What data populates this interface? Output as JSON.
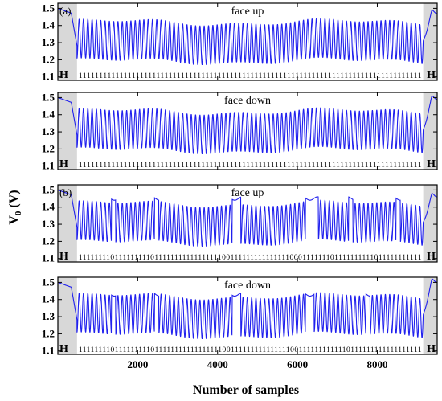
{
  "figure": {
    "xlabel": "Number of samples",
    "ylabel": "V",
    "ylabel_sub": "0",
    "ylabel_unit": " (V)"
  },
  "chart_data": [
    {
      "type": "line",
      "panel_label": "(a)",
      "title": "face up",
      "xlim": [
        0,
        9500
      ],
      "ylim": [
        1.08,
        1.53
      ],
      "yticks": [
        1.1,
        1.2,
        1.3,
        1.4,
        1.5
      ],
      "yticks_labels": [
        "1.1",
        "1.2",
        "1.3",
        "1.4",
        "1.5"
      ],
      "xticks": [
        2000,
        4000,
        6000,
        8000
      ],
      "xticks_labels": [
        "2000",
        "4000",
        "6000",
        "8000"
      ],
      "header_regions": [
        [
          0,
          480
        ],
        [
          9150,
          9500
        ]
      ],
      "header_mark": "H",
      "bit_sequence": "111111111111111111111111111111111111111111111111111111111111111111111111111111111111",
      "line_color": "#2020ee",
      "series": [
        {
          "signal_period_samples": 108,
          "high": 1.42,
          "low": 1.19,
          "start_level": 1.5,
          "end_level": 1.48
        }
      ]
    },
    {
      "type": "line",
      "panel_label": "",
      "title": "face down",
      "xlim": [
        0,
        9500
      ],
      "ylim": [
        1.08,
        1.53
      ],
      "yticks": [
        1.1,
        1.2,
        1.3,
        1.4,
        1.5
      ],
      "yticks_labels": [
        "1.1",
        "1.2",
        "1.3",
        "1.4",
        "1.5"
      ],
      "xticks": [
        2000,
        4000,
        6000,
        8000
      ],
      "xticks_labels": [
        "2000",
        "4000",
        "6000",
        "8000"
      ],
      "header_regions": [
        [
          0,
          480
        ],
        [
          9150,
          9500
        ]
      ],
      "header_mark": "H",
      "bit_sequence": "111111111111111111111111111111111111111111111111111111111111111111111111111111111111",
      "line_color": "#2020ee",
      "series": [
        {
          "signal_period_samples": 108,
          "high": 1.42,
          "low": 1.19,
          "start_level": 1.5,
          "end_level": 1.5
        }
      ]
    },
    {
      "type": "line",
      "panel_label": "(b)",
      "title": "face up",
      "xlim": [
        0,
        9500
      ],
      "ylim": [
        1.08,
        1.53
      ],
      "yticks": [
        1.1,
        1.2,
        1.3,
        1.4,
        1.5
      ],
      "yticks_labels": [
        "1.1",
        "1.2",
        "1.3",
        "1.4",
        "1.5"
      ],
      "xticks": [
        2000,
        4000,
        6000,
        8000
      ],
      "xticks_labels": [
        "2000",
        "4000",
        "6000",
        "8000"
      ],
      "header_regions": [
        [
          0,
          480
        ],
        [
          9150,
          9500
        ]
      ],
      "header_mark": "H",
      "bit_sequence": "11111111011111111101111111111111111100111111111111111000111111101111111111011111111111",
      "line_color": "#2020ee",
      "series": [
        {
          "signal_period_samples": 108,
          "high": 1.42,
          "low": 1.19,
          "zero_level": 1.45,
          "start_level": 1.5,
          "end_level": 1.47
        }
      ]
    },
    {
      "type": "line",
      "panel_label": "",
      "title": "face down",
      "xlim": [
        0,
        9500
      ],
      "ylim": [
        1.08,
        1.53
      ],
      "yticks": [
        1.1,
        1.2,
        1.3,
        1.4,
        1.5
      ],
      "yticks_labels": [
        "1.1",
        "1.2",
        "1.3",
        "1.4",
        "1.5"
      ],
      "xticks": [
        2000,
        4000,
        6000,
        8000
      ],
      "xticks_labels": [
        "2000",
        "4000",
        "6000",
        "8000"
      ],
      "header_regions": [
        [
          0,
          480
        ],
        [
          9150,
          9500
        ]
      ],
      "header_mark": "H",
      "bit_sequence": "11111111011111111101111111111111111100111111111111111001111111111110111111111111111111",
      "line_color": "#2020ee",
      "series": [
        {
          "signal_period_samples": 108,
          "high": 1.42,
          "low": 1.19,
          "zero_level": 1.43,
          "start_level": 1.5,
          "end_level": 1.51
        }
      ]
    }
  ]
}
